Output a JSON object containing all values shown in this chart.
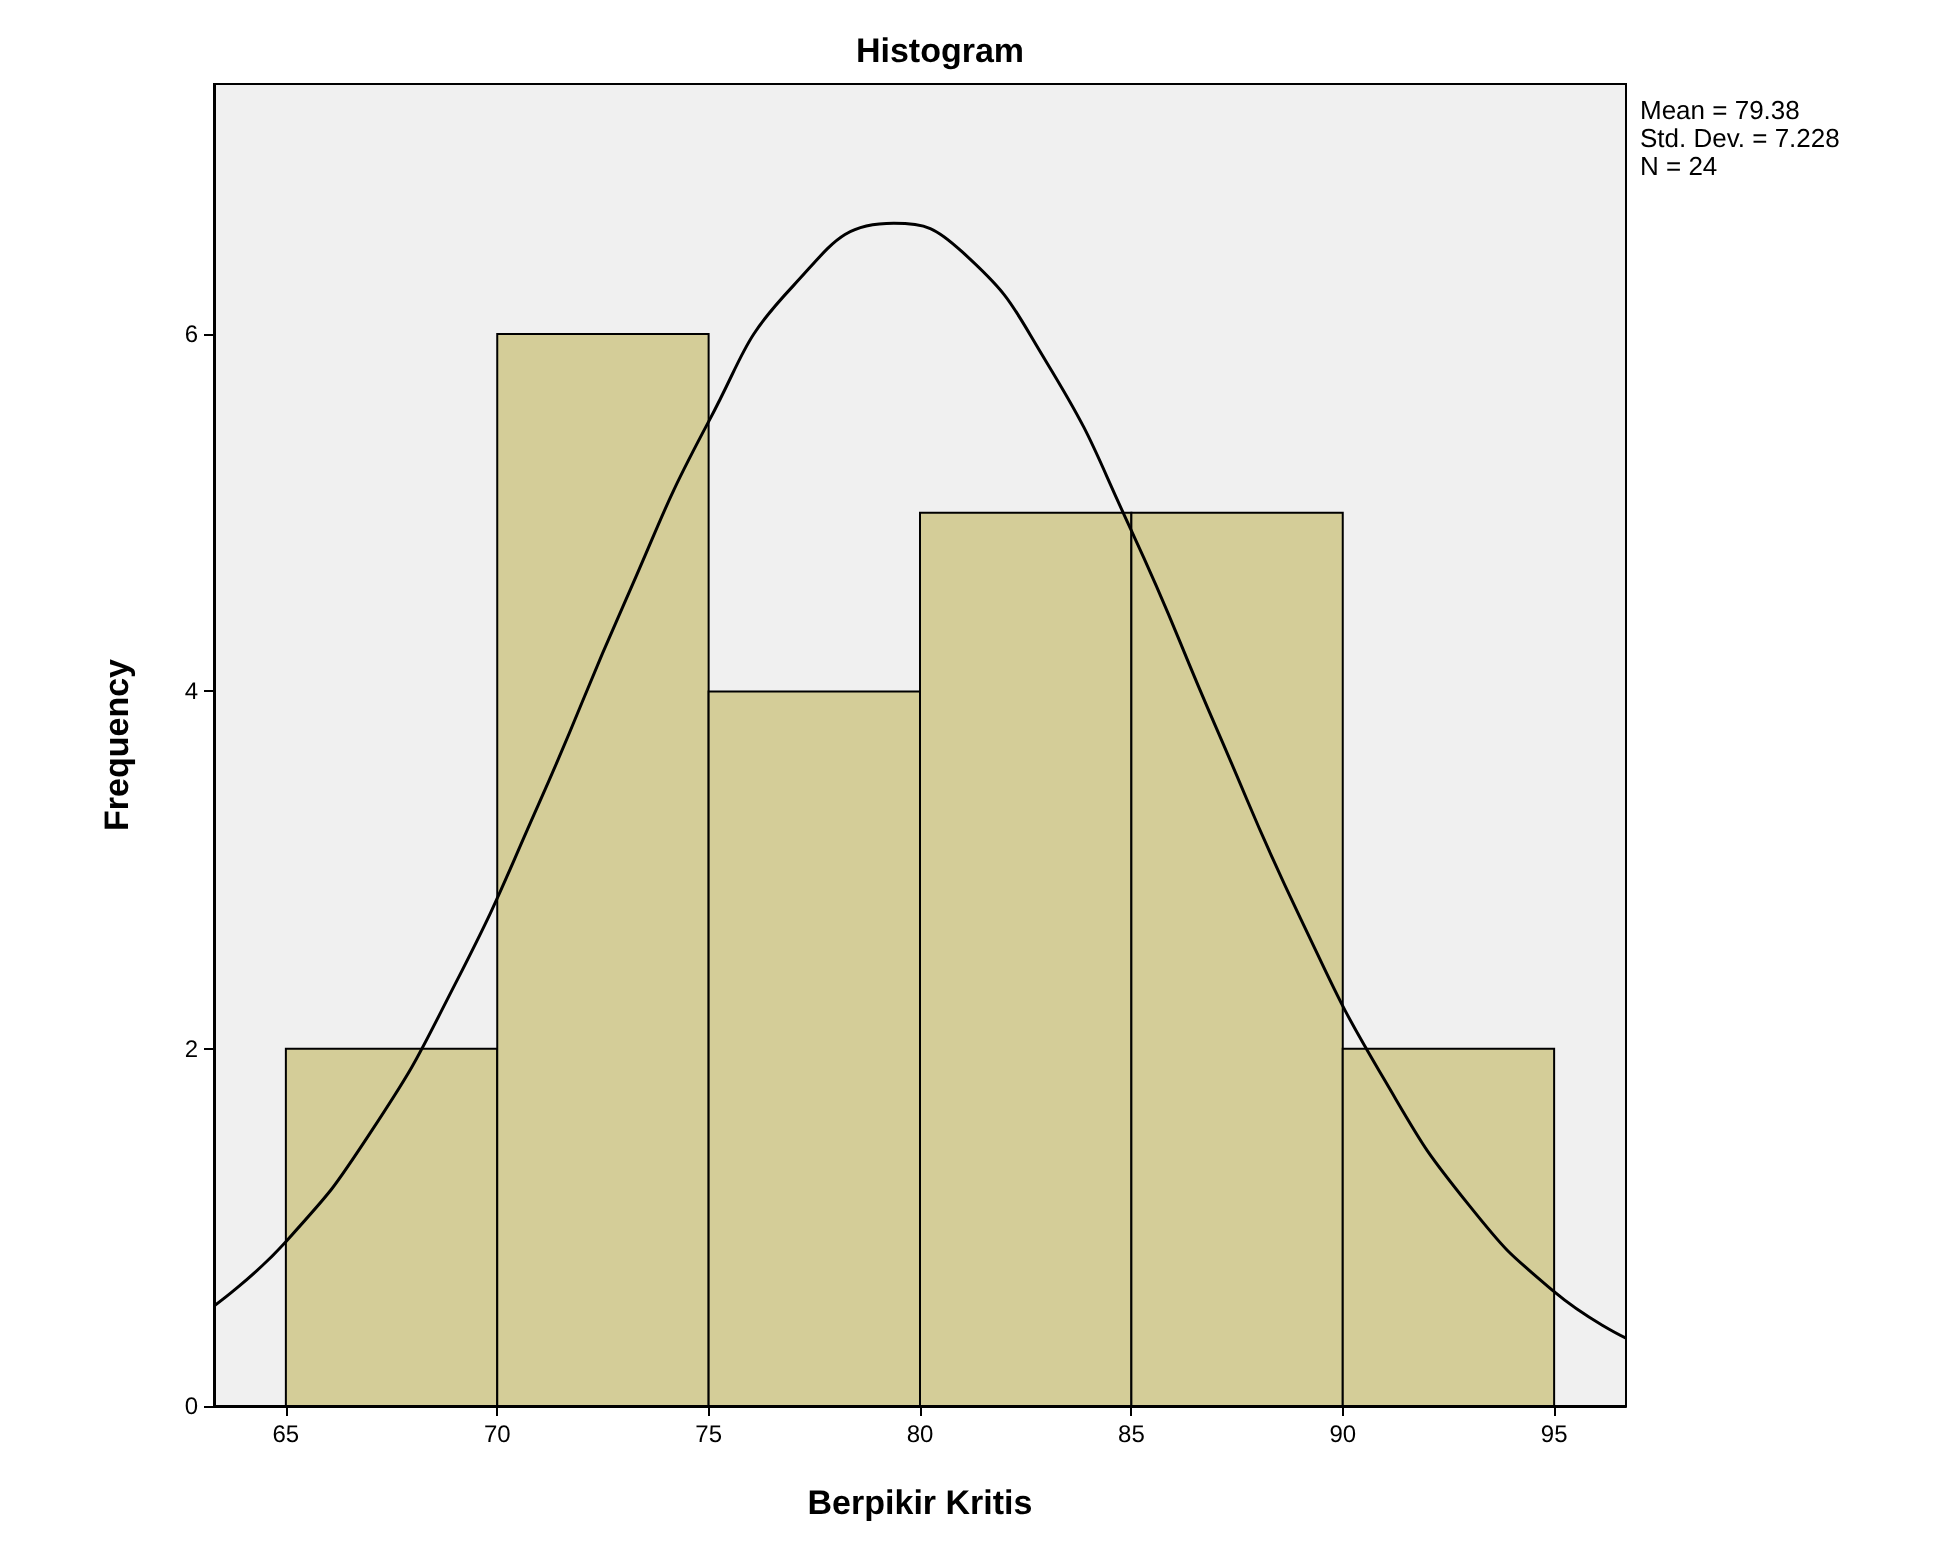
{
  "chart_data": {
    "type": "histogram",
    "title": "Histogram",
    "xlabel": "Berpikir Kritis",
    "ylabel": "Frequency",
    "bins": [
      65,
      70,
      75,
      80,
      85,
      90,
      95
    ],
    "values": [
      2,
      6,
      4,
      5,
      5,
      2
    ],
    "color": "#d4cd98",
    "series": [
      {
        "type": "line",
        "color": "#000000",
        "x": [
          63.3,
          65,
          67,
          69,
          71,
          73,
          75,
          77,
          79.38,
          81,
          83,
          85,
          87,
          89,
          91,
          93,
          95,
          96.7
        ],
        "values": [
          0.56,
          0.92,
          1.53,
          2.36,
          3.38,
          4.49,
          5.51,
          6.27,
          6.62,
          6.46,
          5.84,
          4.9,
          3.8,
          2.73,
          1.82,
          1.12,
          0.64,
          0.38
        ]
      }
    ],
    "marker": "none",
    "line_style": "solid",
    "xlim": [
      63.3,
      96.7
    ],
    "xticks": [
      65,
      70,
      75,
      80,
      85,
      90,
      95
    ],
    "ylim": [
      0,
      7.4
    ],
    "yticks": [
      0,
      2,
      4,
      6
    ],
    "grid": false,
    "annotations": [
      "Mean = 79.38",
      "Std. Dev. = 7.228",
      "N = 24"
    ]
  }
}
